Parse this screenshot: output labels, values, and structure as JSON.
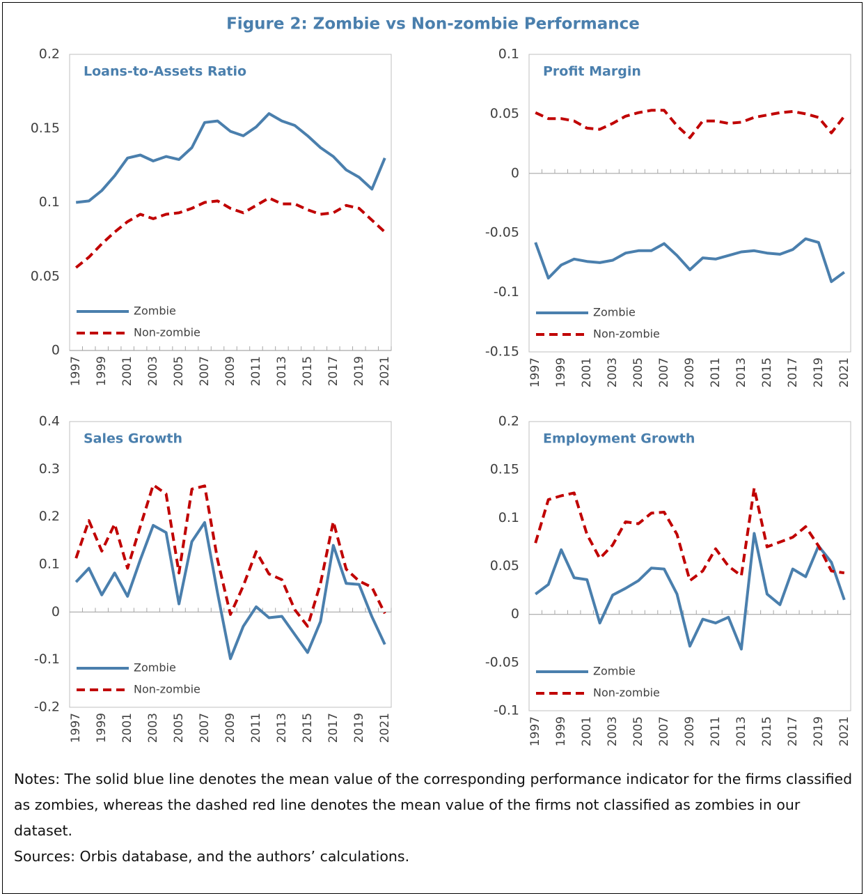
{
  "figure_title": "Figure 2: Zombie vs Non-zombie Performance",
  "notes": "Notes: The solid blue line denotes the mean value of the corresponding performance indicator for the firms classified as zombies, whereas the dashed red line denotes the mean value of the firms not classified as zombies in our dataset.",
  "sources": "Sources: Orbis database, and the authors’ calculations.",
  "chart_data": [
    {
      "type": "line",
      "title": "Loans-to-Assets Ratio",
      "categories": [
        "1997",
        null,
        "1999",
        null,
        "2001",
        null,
        "2003",
        null,
        "2005",
        null,
        "2007",
        null,
        "2009",
        null,
        "2011",
        null,
        "2013",
        null,
        "2015",
        null,
        "2017",
        null,
        "2019",
        null,
        "2021"
      ],
      "ylim": [
        0,
        0.2
      ],
      "yticks": [
        0,
        0.05,
        0.1,
        0.15,
        0.2
      ],
      "legend": "lower left",
      "series": [
        {
          "name": "Zombie",
          "color": "#4a7fad",
          "line_style": "solid",
          "values": [
            0.1,
            0.101,
            0.108,
            0.118,
            0.13,
            0.132,
            0.128,
            0.131,
            0.129,
            0.137,
            0.154,
            0.155,
            0.148,
            0.145,
            0.151,
            0.16,
            0.155,
            0.152,
            0.145,
            0.137,
            0.131,
            0.122,
            0.117,
            0.109,
            0.13
          ]
        },
        {
          "name": "Non-zombie",
          "color": "#c00000",
          "line_style": "dashed",
          "values": [
            0.056,
            0.063,
            0.072,
            0.08,
            0.087,
            0.092,
            0.089,
            0.092,
            0.093,
            0.096,
            0.1,
            0.101,
            0.096,
            0.093,
            0.098,
            0.103,
            0.099,
            0.099,
            0.095,
            0.092,
            0.093,
            0.098,
            0.096,
            0.088,
            0.08
          ]
        }
      ]
    },
    {
      "type": "line",
      "title": "Profit Margin",
      "categories": [
        "1997",
        null,
        "1999",
        null,
        "2001",
        null,
        "2003",
        null,
        "2005",
        null,
        "2007",
        null,
        "2009",
        null,
        "2011",
        null,
        "2013",
        null,
        "2015",
        null,
        "2017",
        null,
        "2019",
        null,
        "2021"
      ],
      "ylim": [
        -0.15,
        0.1
      ],
      "yticks": [
        -0.15,
        -0.1,
        -0.05,
        0,
        0.05,
        0.1
      ],
      "legend": "lower left",
      "series": [
        {
          "name": "Zombie",
          "color": "#4a7fad",
          "line_style": "solid",
          "values": [
            -0.058,
            -0.088,
            -0.077,
            -0.072,
            -0.074,
            -0.075,
            -0.073,
            -0.067,
            -0.065,
            -0.065,
            -0.059,
            -0.069,
            -0.081,
            -0.071,
            -0.072,
            -0.069,
            -0.066,
            -0.065,
            -0.067,
            -0.068,
            -0.064,
            -0.055,
            -0.058,
            -0.091,
            -0.083
          ]
        },
        {
          "name": "Non-zombie",
          "color": "#c00000",
          "line_style": "dashed",
          "values": [
            0.051,
            0.046,
            0.046,
            0.044,
            0.038,
            0.037,
            0.042,
            0.048,
            0.051,
            0.053,
            0.053,
            0.04,
            0.03,
            0.044,
            0.044,
            0.042,
            0.043,
            0.047,
            0.049,
            0.051,
            0.052,
            0.05,
            0.047,
            0.034,
            0.048
          ]
        }
      ]
    },
    {
      "type": "line",
      "title": "Sales Growth",
      "categories": [
        "1997",
        null,
        "1999",
        null,
        "2001",
        null,
        "2003",
        null,
        "2005",
        null,
        "2007",
        null,
        "2009",
        null,
        "2011",
        null,
        "2013",
        null,
        "2015",
        null,
        "2017",
        null,
        "2019",
        null,
        "2021"
      ],
      "ylim": [
        -0.2,
        0.4
      ],
      "yticks": [
        -0.2,
        -0.1,
        0,
        0.1,
        0.2,
        0.3,
        0.4
      ],
      "legend": "lower left",
      "series": [
        {
          "name": "Zombie",
          "color": "#4a7fad",
          "line_style": "solid",
          "values": [
            0.063,
            0.092,
            0.036,
            0.082,
            0.033,
            0.11,
            0.182,
            0.167,
            0.017,
            0.148,
            0.188,
            0.04,
            -0.098,
            -0.03,
            0.011,
            -0.012,
            -0.009,
            -0.047,
            -0.085,
            -0.02,
            0.14,
            0.06,
            0.058,
            -0.01,
            -0.068
          ]
        },
        {
          "name": "Non-zombie",
          "color": "#c00000",
          "line_style": "dashed",
          "values": [
            0.113,
            0.192,
            0.128,
            0.185,
            0.092,
            0.18,
            0.267,
            0.248,
            0.082,
            0.258,
            0.265,
            0.11,
            -0.005,
            0.055,
            0.127,
            0.08,
            0.068,
            0.005,
            -0.03,
            0.06,
            0.19,
            0.09,
            0.065,
            0.052,
            -0.003
          ]
        }
      ]
    },
    {
      "type": "line",
      "title": "Employment Growth",
      "categories": [
        "1997",
        null,
        "1999",
        null,
        "2001",
        null,
        "2003",
        null,
        "2005",
        null,
        "2007",
        null,
        "2009",
        null,
        "2011",
        null,
        "2013",
        null,
        "2015",
        null,
        "2017",
        null,
        "2019",
        null,
        "2021"
      ],
      "ylim": [
        -0.1,
        0.2
      ],
      "yticks": [
        -0.1,
        -0.05,
        0,
        0.05,
        0.1,
        0.15,
        0.2
      ],
      "legend": "lower left",
      "series": [
        {
          "name": "Zombie",
          "color": "#4a7fad",
          "line_style": "solid",
          "values": [
            0.021,
            0.031,
            0.067,
            0.038,
            0.036,
            -0.009,
            0.02,
            0.027,
            0.035,
            0.048,
            0.047,
            0.021,
            -0.033,
            -0.005,
            -0.009,
            -0.003,
            -0.036,
            0.084,
            0.021,
            0.01,
            0.047,
            0.039,
            0.071,
            0.054,
            0.015
          ]
        },
        {
          "name": "Non-zombie",
          "color": "#c00000",
          "line_style": "dashed",
          "values": [
            0.074,
            0.119,
            0.123,
            0.126,
            0.083,
            0.058,
            0.072,
            0.096,
            0.094,
            0.105,
            0.106,
            0.083,
            0.035,
            0.045,
            0.068,
            0.05,
            0.04,
            0.131,
            0.07,
            0.075,
            0.08,
            0.091,
            0.071,
            0.045,
            0.043
          ]
        }
      ]
    }
  ]
}
